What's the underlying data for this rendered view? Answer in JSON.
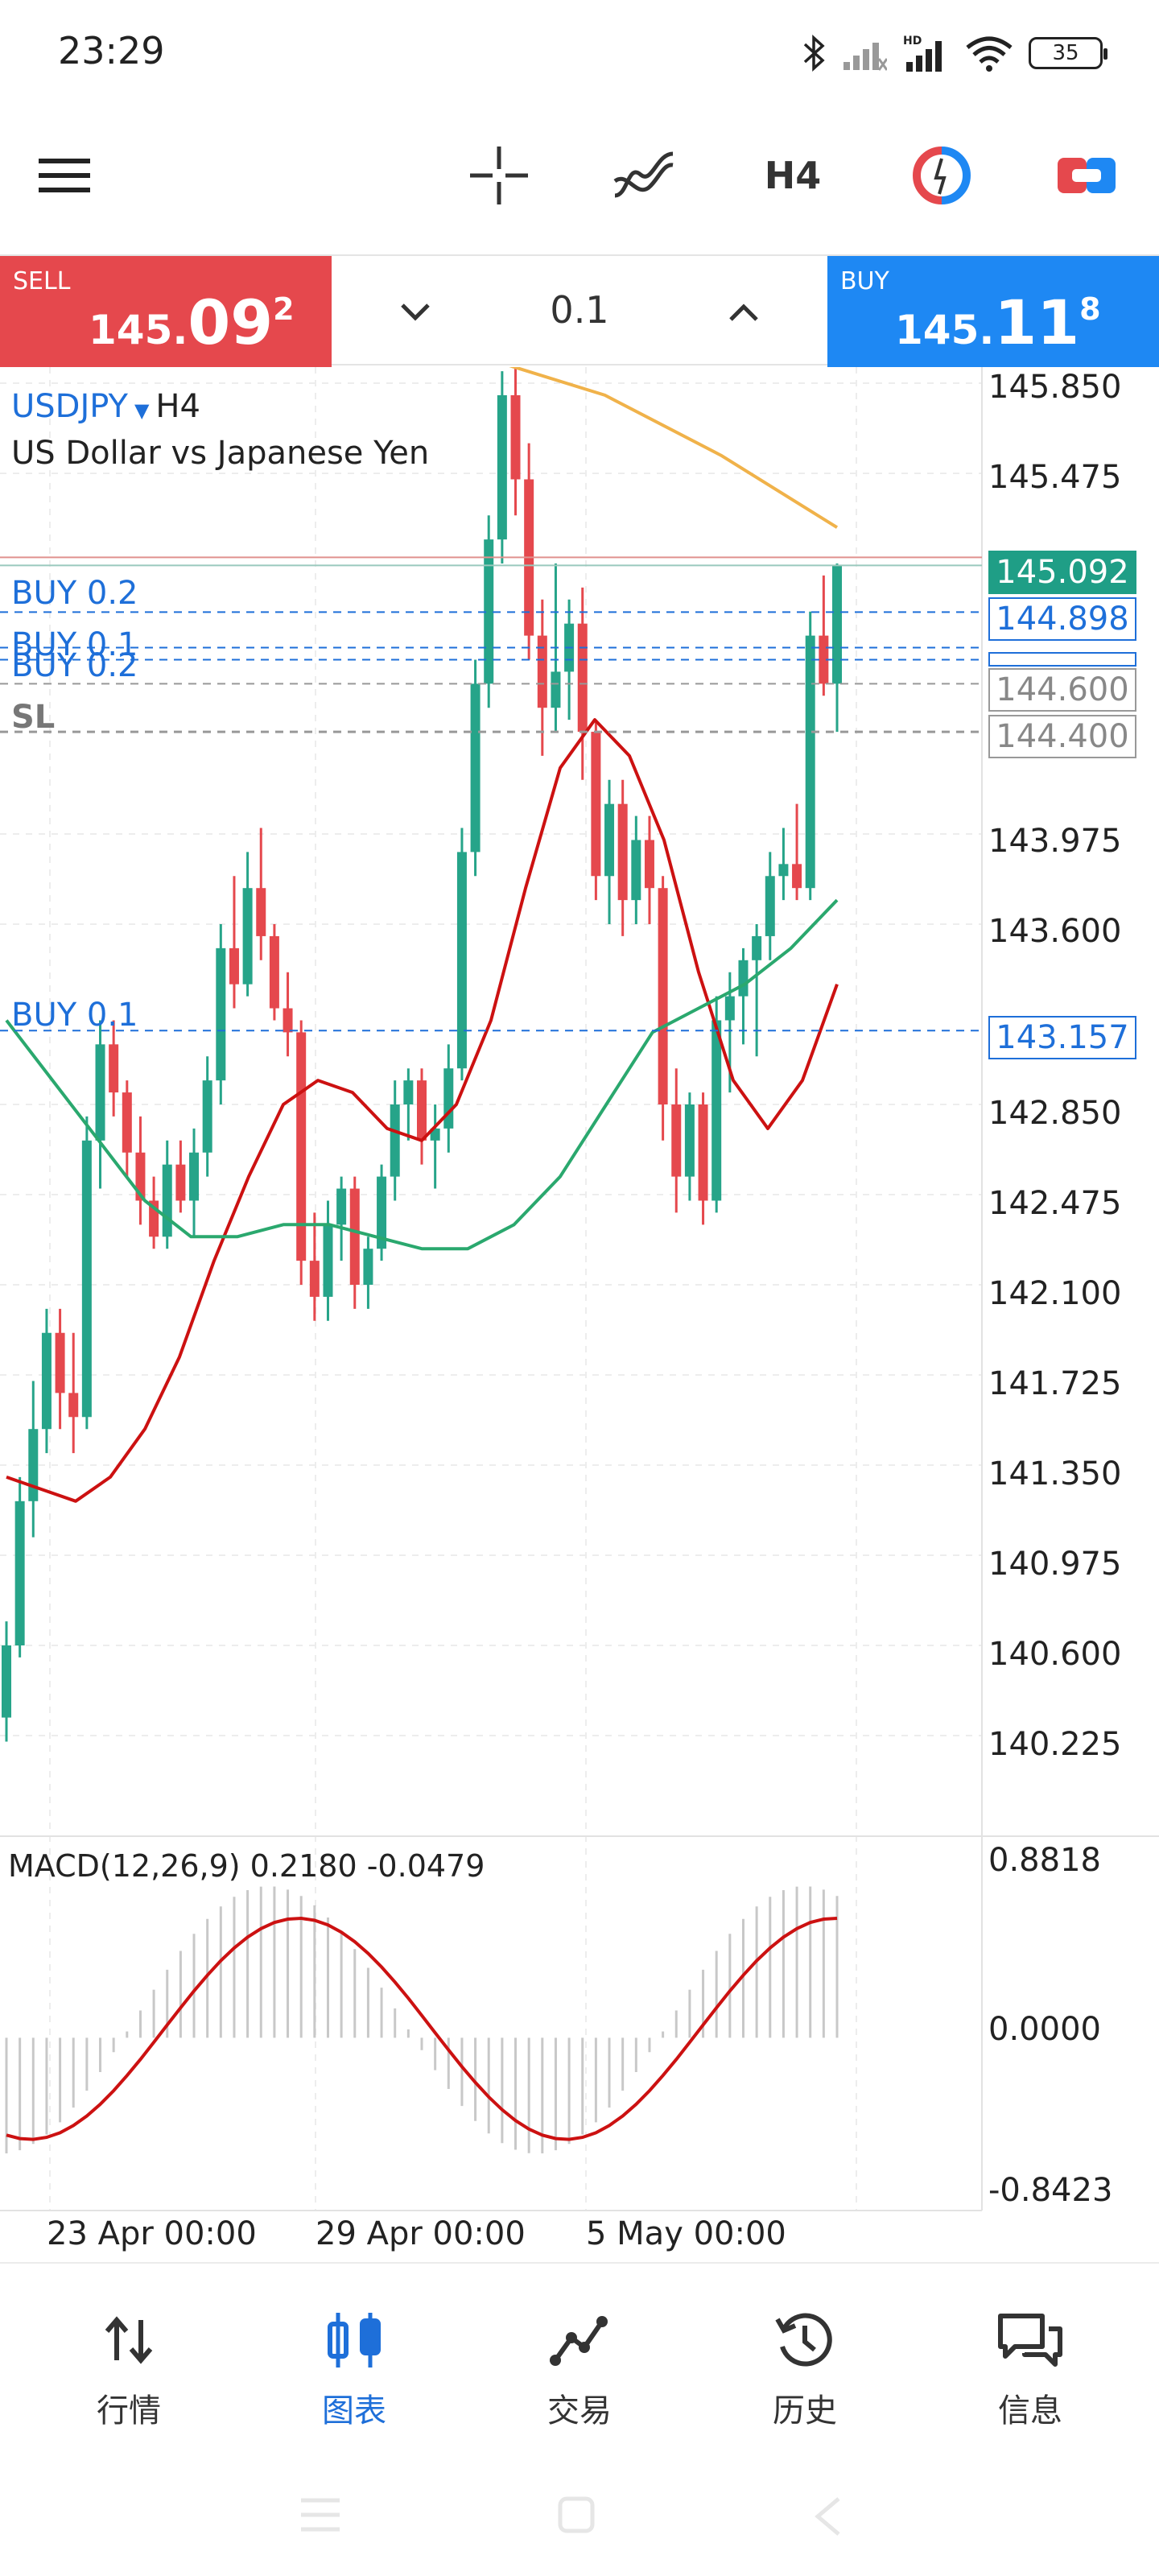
{
  "status": {
    "time": "23:29",
    "battery": "35"
  },
  "toolbar": {
    "timeframe": "H4"
  },
  "trade": {
    "sell_label": "SELL",
    "sell_price_prefix": "145.",
    "sell_price_big": "09",
    "sell_price_sup": "2",
    "buy_label": "BUY",
    "buy_price_prefix": "145.",
    "buy_price_big": "11",
    "buy_price_sup": "8",
    "lot": "0.1"
  },
  "chart_header": {
    "symbol": "USDJPY",
    "timeframe": "H4",
    "description": "US Dollar vs Japanese Yen"
  },
  "orders": [
    {
      "label": "BUY 0.2",
      "price": "144.898"
    },
    {
      "label": "BUY 0.1",
      "price": "144.600"
    },
    {
      "label": "BUY 0.2"
    },
    {
      "label": "SL",
      "price": "144.400"
    },
    {
      "label": "BUY 0.1",
      "price": "143.157"
    }
  ],
  "current_price": "145.092",
  "price_axis": [
    "145.850",
    "145.475",
    "143.975",
    "143.600",
    "142.850",
    "142.475",
    "142.100",
    "141.725",
    "141.350",
    "140.975",
    "140.600",
    "140.225"
  ],
  "macd": {
    "label": "MACD(12,26,9) 0.2180 -0.0479",
    "axis": [
      "0.8818",
      "0.0000",
      "-0.8423"
    ]
  },
  "time_axis": [
    "23 Apr 00:00",
    "29 Apr 00:00",
    "5 May 00:00"
  ],
  "nav": [
    {
      "label": "行情",
      "icon": "quotes-icon"
    },
    {
      "label": "图表",
      "icon": "chart-icon"
    },
    {
      "label": "交易",
      "icon": "trade-icon"
    },
    {
      "label": "历史",
      "icon": "history-icon"
    },
    {
      "label": "信息",
      "icon": "messages-icon"
    }
  ],
  "colors": {
    "sell": "#e5484d",
    "buy": "#1e88f3",
    "bull": "#26a489",
    "bear": "#e5484d",
    "accent": "#1e6fd9",
    "ma_fast": "#cc1111",
    "ma_slow": "#2aa86e",
    "ma_long": "#f0b24a"
  },
  "chart_data": {
    "type": "candlestick",
    "symbol": "USDJPY",
    "timeframe": "H4",
    "ylim": [
      140.0,
      146.0
    ],
    "yticks": [
      145.85,
      145.475,
      143.975,
      143.6,
      142.85,
      142.475,
      142.1,
      141.725,
      141.35,
      140.975,
      140.6,
      140.225
    ],
    "xticks": [
      "23 Apr 00:00",
      "29 Apr 00:00",
      "5 May 00:00"
    ],
    "candles": [
      [
        140.3,
        140.7,
        140.2,
        140.6
      ],
      [
        140.6,
        141.3,
        140.55,
        141.2
      ],
      [
        141.2,
        141.7,
        141.05,
        141.5
      ],
      [
        141.5,
        142.0,
        141.4,
        141.9
      ],
      [
        141.9,
        142.0,
        141.5,
        141.65
      ],
      [
        141.65,
        141.9,
        141.4,
        141.55
      ],
      [
        141.55,
        142.8,
        141.5,
        142.7
      ],
      [
        142.7,
        143.2,
        142.5,
        143.1
      ],
      [
        143.1,
        143.2,
        142.8,
        142.9
      ],
      [
        142.9,
        142.95,
        142.55,
        142.65
      ],
      [
        142.65,
        142.8,
        142.35,
        142.45
      ],
      [
        142.45,
        142.55,
        142.25,
        142.3
      ],
      [
        142.3,
        142.7,
        142.25,
        142.6
      ],
      [
        142.6,
        142.7,
        142.4,
        142.45
      ],
      [
        142.45,
        142.75,
        142.3,
        142.65
      ],
      [
        142.65,
        143.05,
        142.55,
        142.95
      ],
      [
        142.95,
        143.6,
        142.85,
        143.5
      ],
      [
        143.5,
        143.8,
        143.25,
        143.35
      ],
      [
        143.35,
        143.9,
        143.3,
        143.75
      ],
      [
        143.75,
        144.0,
        143.45,
        143.55
      ],
      [
        143.55,
        143.6,
        143.2,
        143.25
      ],
      [
        143.25,
        143.4,
        143.05,
        143.15
      ],
      [
        143.15,
        143.2,
        142.1,
        142.2
      ],
      [
        142.2,
        142.4,
        141.95,
        142.05
      ],
      [
        142.05,
        142.45,
        141.95,
        142.35
      ],
      [
        142.35,
        142.55,
        142.2,
        142.5
      ],
      [
        142.5,
        142.55,
        142.0,
        142.1
      ],
      [
        142.1,
        142.3,
        142.0,
        142.25
      ],
      [
        142.25,
        142.6,
        142.2,
        142.55
      ],
      [
        142.55,
        142.95,
        142.45,
        142.85
      ],
      [
        142.85,
        143.0,
        142.7,
        142.95
      ],
      [
        142.95,
        143.0,
        142.6,
        142.7
      ],
      [
        142.7,
        142.85,
        142.5,
        142.75
      ],
      [
        142.75,
        143.1,
        142.65,
        143.0
      ],
      [
        143.0,
        144.0,
        142.95,
        143.9
      ],
      [
        143.9,
        144.7,
        143.8,
        144.6
      ],
      [
        144.6,
        145.3,
        144.5,
        145.2
      ],
      [
        145.2,
        145.9,
        145.1,
        145.8
      ],
      [
        145.8,
        145.95,
        145.3,
        145.45
      ],
      [
        145.45,
        145.6,
        144.7,
        144.8
      ],
      [
        144.8,
        144.95,
        144.3,
        144.5
      ],
      [
        144.5,
        145.1,
        144.4,
        144.65
      ],
      [
        144.65,
        144.95,
        144.45,
        144.85
      ],
      [
        144.85,
        145.0,
        144.2,
        144.4
      ],
      [
        144.4,
        144.45,
        143.7,
        143.8
      ],
      [
        143.8,
        144.2,
        143.6,
        144.1
      ],
      [
        144.1,
        144.2,
        143.55,
        143.7
      ],
      [
        143.7,
        144.05,
        143.6,
        143.95
      ],
      [
        143.95,
        144.05,
        143.6,
        143.75
      ],
      [
        143.75,
        143.8,
        142.7,
        142.85
      ],
      [
        142.85,
        143.0,
        142.4,
        142.55
      ],
      [
        142.55,
        142.9,
        142.45,
        142.85
      ],
      [
        142.85,
        142.9,
        142.35,
        142.45
      ],
      [
        142.45,
        143.3,
        142.4,
        143.2
      ],
      [
        143.2,
        143.4,
        142.9,
        143.3
      ],
      [
        143.3,
        143.5,
        143.1,
        143.45
      ],
      [
        143.45,
        143.6,
        143.05,
        143.55
      ],
      [
        143.55,
        143.9,
        143.45,
        143.8
      ],
      [
        143.8,
        144.0,
        143.7,
        143.85
      ],
      [
        143.85,
        144.1,
        143.7,
        143.75
      ],
      [
        143.75,
        144.9,
        143.7,
        144.8
      ],
      [
        144.8,
        145.05,
        144.55,
        144.6
      ],
      [
        144.6,
        145.1,
        144.4,
        145.09
      ]
    ],
    "series": [
      {
        "values": [
          141.3,
          141.25,
          141.2,
          141.3,
          141.5,
          141.8,
          142.2,
          142.55,
          142.85,
          142.95,
          142.9,
          142.75,
          142.7,
          142.85,
          143.2,
          143.75,
          144.25,
          144.45,
          144.3,
          143.95,
          143.4,
          142.95,
          142.75,
          142.95,
          143.35
        ]
      },
      {
        "values": [
          143.2,
          142.95,
          142.7,
          142.45,
          142.3,
          142.3,
          142.35,
          142.35,
          142.3,
          142.25,
          142.25,
          142.35,
          142.55,
          142.85,
          143.15,
          143.25,
          143.35,
          143.5,
          143.7
        ]
      }
    ],
    "macd_ylim": [
      -0.8423,
      0.8818
    ]
  }
}
